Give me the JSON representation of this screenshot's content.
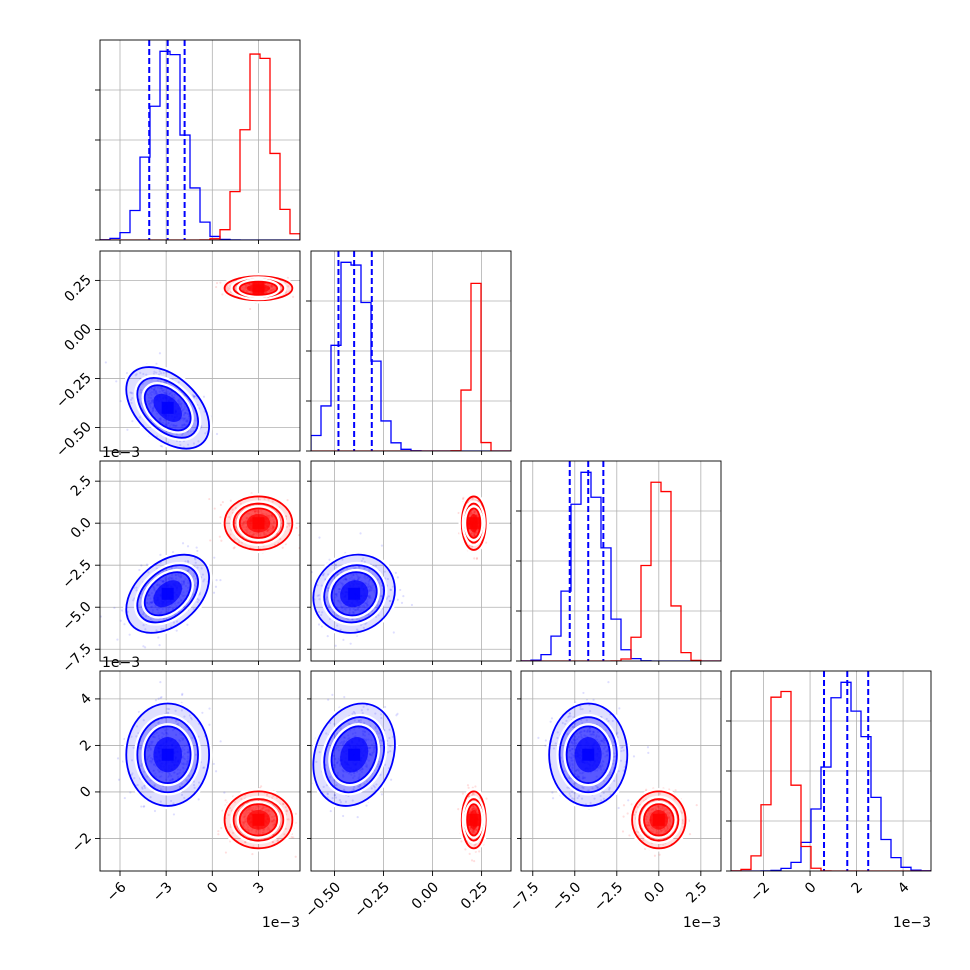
{
  "chart_data": {
    "type": "corner",
    "parameters": [
      {
        "index": 0,
        "range": [
          -7.3,
          5.7
        ],
        "ticks": [
          -6,
          -3,
          0,
          3
        ],
        "tick_labels": [
          "−6",
          "−3",
          "0",
          "3"
        ],
        "offset_label": "1e−3"
      },
      {
        "index": 1,
        "range": [
          -0.62,
          0.4
        ],
        "ticks": [
          -0.5,
          -0.25,
          0.0,
          0.25
        ],
        "tick_labels": [
          "−0.50",
          "−0.25",
          "0.00",
          "0.25"
        ],
        "offset_label": ""
      },
      {
        "index": 2,
        "range": [
          -8.2,
          3.7
        ],
        "ticks": [
          -7.5,
          -5.0,
          -2.5,
          0.0,
          2.5
        ],
        "tick_labels": [
          "−7.5",
          "−5.0",
          "−2.5",
          "0.0",
          "2.5"
        ],
        "offset_label": "1e−3"
      },
      {
        "index": 3,
        "range": [
          -3.4,
          5.2
        ],
        "ticks": [
          -2,
          0,
          2,
          4
        ],
        "tick_labels": [
          "−2",
          "0",
          "2",
          "4"
        ],
        "offset_label": "1e−3"
      }
    ],
    "series": [
      {
        "color": "#0000ff",
        "means": [
          -2.9,
          -0.4,
          -4.2,
          1.6
        ],
        "stds": [
          1.1,
          0.085,
          0.95,
          0.9
        ],
        "correlations": {
          "0-1": -0.45,
          "0-2": 0.4,
          "0-3": 0.0,
          "1-2": 0.1,
          "1-3": 0.2,
          "2-3": 0.0
        },
        "quantile_lines": [
          [
            -4.1,
            -2.9,
            -1.8
          ],
          [
            -0.48,
            -0.4,
            -0.31
          ],
          [
            -5.3,
            -4.2,
            -3.3
          ],
          [
            0.6,
            1.6,
            2.5
          ]
        ]
      },
      {
        "color": "#ff0000",
        "means": [
          3.0,
          0.21,
          0.0,
          -1.2
        ],
        "stds": [
          0.9,
          0.025,
          0.65,
          0.5
        ],
        "correlations": {
          "0-1": 0.0,
          "0-2": 0.0,
          "0-3": 0.0,
          "1-2": 0.0,
          "1-3": 0.0,
          "2-3": 0.0
        },
        "quantile_lines": null
      }
    ],
    "grid": true,
    "legend": "none"
  }
}
